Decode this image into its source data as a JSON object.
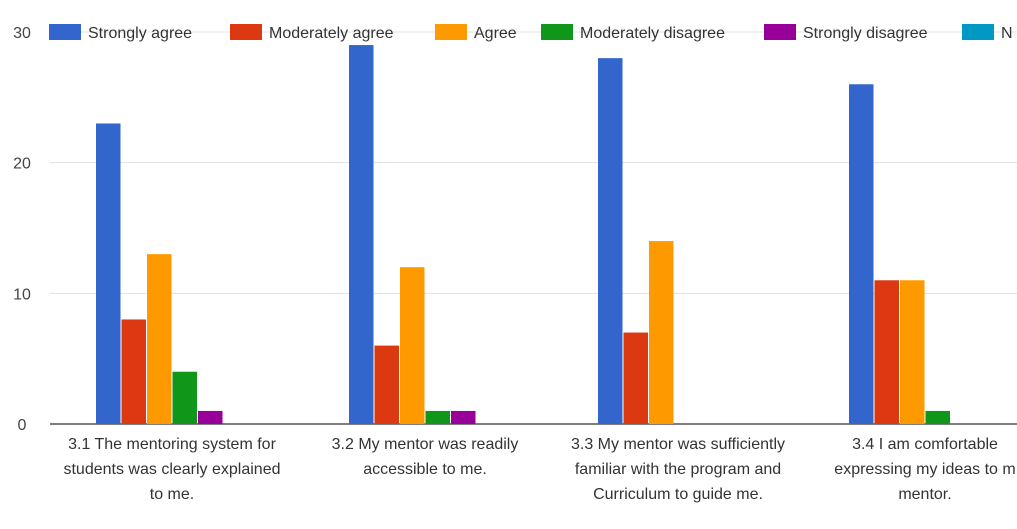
{
  "chart_data": {
    "type": "bar",
    "categories": [
      [
        "3.1 The mentoring system for",
        "students was clearly explained",
        "to me."
      ],
      [
        "3.2 My mentor was readily",
        "accessible to me."
      ],
      [
        "3.3 My mentor was sufficiently",
        "familiar with the program and",
        "Curriculum to guide me."
      ],
      [
        "3.4 I am comfortable",
        "expressing my ideas to m",
        "mentor."
      ]
    ],
    "series": [
      {
        "name": "Strongly agree",
        "color": "#3366cc",
        "values": [
          23,
          29,
          28,
          26
        ]
      },
      {
        "name": "Moderately agree",
        "color": "#dc3912",
        "values": [
          8,
          6,
          7,
          11
        ]
      },
      {
        "name": "Agree",
        "color": "#ff9900",
        "values": [
          13,
          12,
          14,
          11
        ]
      },
      {
        "name": "Moderately disagree",
        "color": "#109618",
        "values": [
          4,
          1,
          0,
          1
        ]
      },
      {
        "name": "Strongly disagree",
        "color": "#990099",
        "values": [
          1,
          1,
          0,
          0
        ]
      },
      {
        "name": "N",
        "color": "#0099c6",
        "values": [
          0,
          0,
          0,
          0
        ]
      }
    ],
    "yticks": [
      0,
      10,
      20,
      30
    ],
    "ylim": [
      0,
      30
    ],
    "grid": true,
    "legend_position": "top"
  }
}
